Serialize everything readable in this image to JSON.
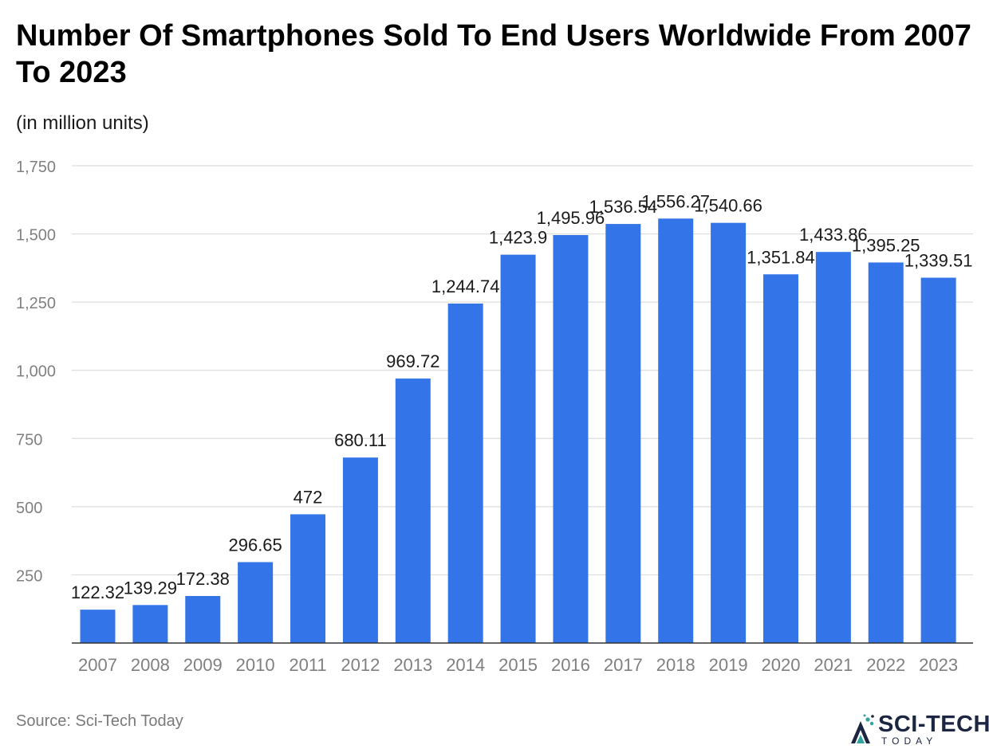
{
  "header": {
    "title": "Number Of Smartphones Sold To End Users Worldwide From 2007 To 2023",
    "subtitle": "(in million units)"
  },
  "footer": {
    "source": "Source: Sci-Tech Today",
    "logo_text": "SCI-TECH",
    "logo_subtext": "TODAY"
  },
  "colors": {
    "bar": "#3375e8",
    "grid": "#dddddd",
    "axis": "#333333",
    "tick_label": "#808080",
    "data_label": "#1a1a1a",
    "logo_dark": "#1c2541",
    "logo_teal": "#2fa4a0"
  },
  "chart_data": {
    "type": "bar",
    "title": "Number Of Smartphones Sold To End Users Worldwide From 2007 To 2023",
    "subtitle": "(in million units)",
    "xlabel": "",
    "ylabel": "",
    "categories": [
      "2007",
      "2008",
      "2009",
      "2010",
      "2011",
      "2012",
      "2013",
      "2014",
      "2015",
      "2016",
      "2017",
      "2018",
      "2019",
      "2020",
      "2021",
      "2022",
      "2023"
    ],
    "values": [
      122.32,
      139.29,
      172.38,
      296.65,
      472,
      680.11,
      969.72,
      1244.74,
      1423.9,
      1495.96,
      1536.54,
      1556.27,
      1540.66,
      1351.84,
      1433.86,
      1395.25,
      1339.51
    ],
    "value_labels": [
      "122.32",
      "139.29",
      "172.38",
      "296.65",
      "472",
      "680.11",
      "969.72",
      "1,244.74",
      "1,423.9",
      "1,495.96",
      "1,536.54",
      "1,556.27",
      "1,540.66",
      "1,351.84",
      "1,433.86",
      "1,395.25",
      "1,339.51"
    ],
    "ylim": [
      0,
      1750
    ],
    "yticks": [
      250,
      500,
      750,
      1000,
      1250,
      1500,
      1750
    ],
    "ytick_labels": [
      "250",
      "500",
      "750",
      "1,000",
      "1,250",
      "1,500",
      "1,750"
    ],
    "grid": true,
    "legend": "none"
  }
}
